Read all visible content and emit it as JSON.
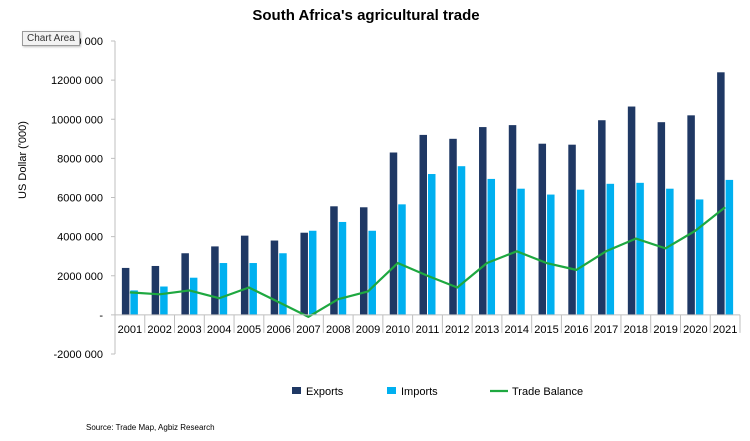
{
  "tooltip": "Chart Area",
  "chart_data": {
    "type": "bar",
    "title": "South Africa's agricultural trade",
    "xlabel": "",
    "ylabel": "US Dollar ('000)",
    "source": "Source: Trade Map, Agbiz Research",
    "ylim": [
      -2000000,
      14000000
    ],
    "yticks": [
      -2000000,
      0,
      2000000,
      4000000,
      6000000,
      8000000,
      10000000,
      12000000,
      14000000
    ],
    "ytick_labels": [
      "-2000 000",
      "-",
      "2000 000",
      "4000 000",
      "6000 000",
      "8000 000",
      "10000 000",
      "12000 000",
      "14000 000"
    ],
    "grid": false,
    "legend_position": "bottom",
    "categories": [
      "2001",
      "2002",
      "2003",
      "2004",
      "2005",
      "2006",
      "2007",
      "2008",
      "2009",
      "2010",
      "2011",
      "2012",
      "2013",
      "2014",
      "2015",
      "2016",
      "2017",
      "2018",
      "2019",
      "2020",
      "2021"
    ],
    "series": [
      {
        "name": "Exports",
        "type": "bar",
        "color": "#1f3864",
        "values": [
          2400000,
          2500000,
          3150000,
          3500000,
          4050000,
          3800000,
          4200000,
          5550000,
          5500000,
          8300000,
          9200000,
          9000000,
          9600000,
          9700000,
          8750000,
          8700000,
          9950000,
          10650000,
          9850000,
          10200000,
          12400000
        ]
      },
      {
        "name": "Imports",
        "type": "bar",
        "color": "#00b0f0",
        "values": [
          1250000,
          1450000,
          1900000,
          2650000,
          2650000,
          3150000,
          4300000,
          4750000,
          4300000,
          5650000,
          7200000,
          7600000,
          6950000,
          6450000,
          6150000,
          6400000,
          6700000,
          6750000,
          6450000,
          5900000,
          6900000
        ]
      },
      {
        "name": "Trade Balance",
        "type": "line",
        "color": "#1ea840",
        "values": [
          1150000,
          1050000,
          1250000,
          850000,
          1400000,
          650000,
          -100000,
          800000,
          1200000,
          2650000,
          2000000,
          1400000,
          2650000,
          3250000,
          2650000,
          2300000,
          3250000,
          3900000,
          3400000,
          4300000,
          5500000
        ]
      }
    ]
  }
}
